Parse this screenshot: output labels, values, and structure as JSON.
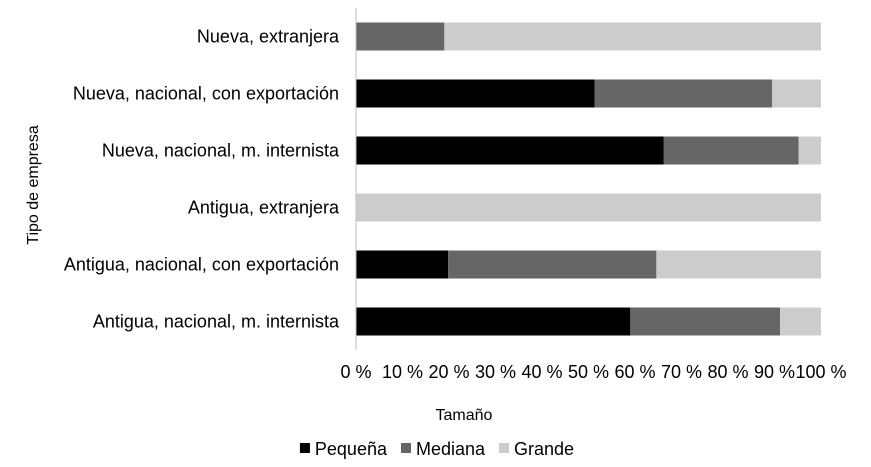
{
  "chart_data": {
    "type": "bar",
    "orientation": "horizontal",
    "stacked": "percent",
    "categories": [
      "Nueva, extranjera",
      "Nueva, nacional, con exportación",
      "Nueva, nacional, m. internista",
      "Antigua, extranjera",
      "Antigua, nacional, con exportación",
      "Antigua, nacional, m. internista"
    ],
    "series": [
      {
        "name": "Pequeña",
        "color": "#000000",
        "values": [
          0,
          51.3,
          66.2,
          0,
          19.8,
          59.0
        ]
      },
      {
        "name": "Mediana",
        "color": "#666666",
        "values": [
          19.0,
          38.2,
          29.0,
          0,
          44.8,
          32.2
        ]
      },
      {
        "name": "Grande",
        "color": "#cccccc",
        "values": [
          81.0,
          10.5,
          4.8,
          100,
          35.4,
          8.8
        ]
      }
    ],
    "xlim": [
      0,
      100
    ],
    "xticks": [
      "0 %",
      "10 %",
      "20 %",
      "30 %",
      "40 %",
      "50 %",
      "60 %",
      "70 %",
      "80 %",
      "90 %",
      "100 %"
    ],
    "xlabel": "Tamaño",
    "ylabel": "Tipo de empresa",
    "legend_position": "bottom",
    "grid": false
  }
}
